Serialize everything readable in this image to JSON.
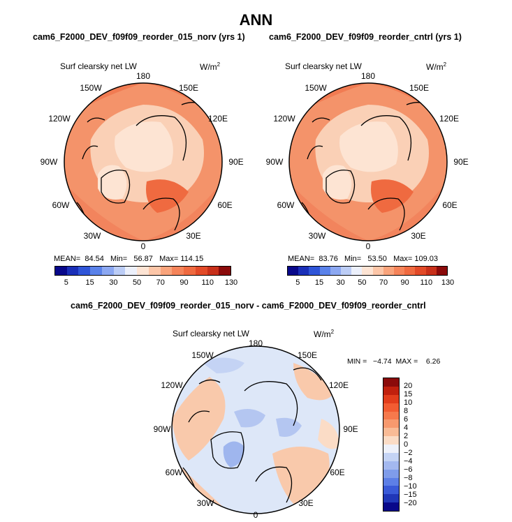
{
  "main_title": "ANN",
  "panels": [
    {
      "title": "cam6_F2000_DEV_f09f09_reorder_015_norv (yrs 1)",
      "variable": "Surf clearsky net LW",
      "units_base": "W/m",
      "units_exp": "2",
      "mean_label": "MEAN=",
      "mean": "84.54",
      "min_label": "Min=",
      "min": "56.87",
      "max_label": "Max=",
      "max": "114.15"
    },
    {
      "title": "cam6_F2000_DEV_f09f09_reorder_cntrl (yrs 1)",
      "variable": "Surf clearsky net LW",
      "units_base": "W/m",
      "units_exp": "2",
      "mean_label": "MEAN=",
      "mean": "83.76",
      "min_label": "Min=",
      "min": "53.50",
      "max_label": "Max=",
      "max": "109.03"
    }
  ],
  "diff_panel": {
    "title": "cam6_F2000_DEV_f09f09_reorder_015_norv - cam6_F2000_DEV_f09f09_reorder_cntrl",
    "variable": "Surf clearsky net LW",
    "units_base": "W/m",
    "units_exp": "2",
    "minmax": "MIN =   −4.74  MAX =    6.26"
  },
  "longitude_labels": {
    "l180": "180",
    "l150e": "150E",
    "l120e": "120E",
    "l90e": "90E",
    "l60e": "60E",
    "l30e": "30E",
    "l0": "0",
    "l30w": "30W",
    "l60w": "60W",
    "l90w": "90W",
    "l120w": "120W",
    "l150w": "150W"
  },
  "abs_colorbar": {
    "tick_labels": [
      "5",
      "15",
      "30",
      "50",
      "70",
      "90",
      "110",
      "130"
    ],
    "colors": [
      "#08088a",
      "#1a2fb8",
      "#2f55d8",
      "#5a82ea",
      "#8ca8f2",
      "#bccdf6",
      "#ecf0fb",
      "#fde4d4",
      "#fcc6a8",
      "#f9a47c",
      "#f5845a",
      "#ef6a40",
      "#e24a28",
      "#c8301a",
      "#8b0b0b"
    ]
  },
  "diff_colorbar": {
    "tick_labels": [
      "20",
      "15",
      "10",
      "8",
      "6",
      "4",
      "2",
      "0",
      "−2",
      "−4",
      "−6",
      "−8",
      "−10",
      "−15",
      "−20"
    ],
    "colors": [
      "#8b0b0b",
      "#c0200e",
      "#e23d1c",
      "#f25c32",
      "#f6794c",
      "#f7996e",
      "#f9bb96",
      "#fbdcc6",
      "#eef1fa",
      "#c4d3f4",
      "#a3b8ef",
      "#7f9cea",
      "#5d7fe6",
      "#3a5ad8",
      "#2037b8",
      "#08088a"
    ]
  },
  "colors": {
    "outside_base": "#f4936a",
    "outside_shade": "#ef7049",
    "cold_land": "#fde4d3",
    "warm_pole": "#fad0b6",
    "coast": "#000000",
    "diff_base": "#dde7f8",
    "diff_warm": "#f9c9ab",
    "diff_cold": "#9fb6ee"
  }
}
